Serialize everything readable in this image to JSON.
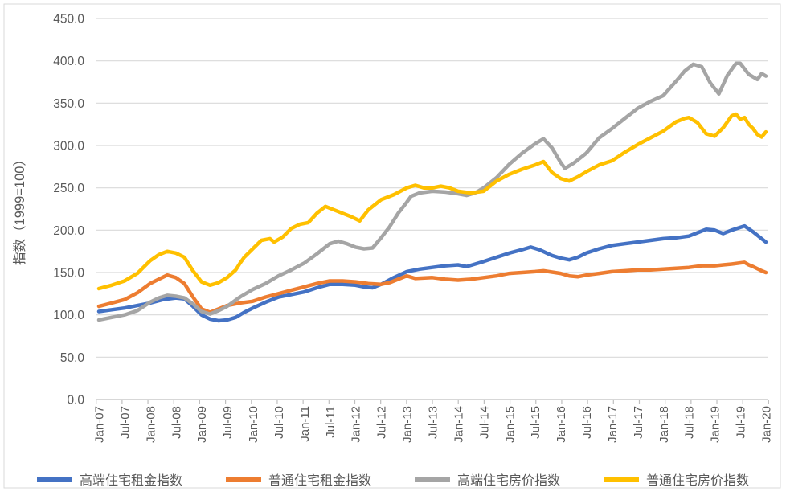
{
  "chart_data": {
    "type": "line",
    "title": "",
    "ylabel": "指数（1999=100）",
    "xlabel": "",
    "ylim": [
      0,
      450
    ],
    "y_tick_labels": [
      "0.0",
      "50.0",
      "100.0",
      "150.0",
      "200.0",
      "250.0",
      "300.0",
      "350.0",
      "400.0",
      "450.0"
    ],
    "x_tick_labels": [
      "Jan-07",
      "Jul-07",
      "Jan-08",
      "Jul-08",
      "Jan-09",
      "Jul-09",
      "Jan-10",
      "Jul-10",
      "Jan-11",
      "Jul-11",
      "Jan-12",
      "Jul-12",
      "Jan-13",
      "Jul-13",
      "Jan-14",
      "Jul-14",
      "Jan-15",
      "Jul-15",
      "Jan-16",
      "Jul-16",
      "Jan-17",
      "Jul-17",
      "Jan-18",
      "Jul-18",
      "Jan-19",
      "Jul-19",
      "Jan-20"
    ],
    "x_months_total": 157,
    "x_range_note": "monthly categories from Jan-07 (index 0) to Jan-20 (index 156), ticks every 6 months",
    "grid": "horizontal",
    "legend_position": "bottom",
    "series": [
      {
        "name": "高端住宅租金指数",
        "color": "#4472C4",
        "points": [
          [
            0,
            104
          ],
          [
            3,
            106
          ],
          [
            6,
            108
          ],
          [
            9,
            111
          ],
          [
            12,
            114
          ],
          [
            15,
            118
          ],
          [
            18,
            120
          ],
          [
            20,
            119
          ],
          [
            22,
            110
          ],
          [
            24,
            100
          ],
          [
            26,
            95
          ],
          [
            28,
            93
          ],
          [
            30,
            94
          ],
          [
            32,
            97
          ],
          [
            34,
            103
          ],
          [
            36,
            108
          ],
          [
            39,
            115
          ],
          [
            42,
            121
          ],
          [
            45,
            124
          ],
          [
            48,
            127
          ],
          [
            51,
            132
          ],
          [
            54,
            136
          ],
          [
            57,
            136
          ],
          [
            60,
            135
          ],
          [
            62,
            133
          ],
          [
            64,
            132
          ],
          [
            66,
            136
          ],
          [
            69,
            144
          ],
          [
            72,
            151
          ],
          [
            75,
            154
          ],
          [
            78,
            156
          ],
          [
            81,
            158
          ],
          [
            84,
            159
          ],
          [
            86,
            157
          ],
          [
            88,
            160
          ],
          [
            90,
            163
          ],
          [
            93,
            168
          ],
          [
            96,
            173
          ],
          [
            99,
            177
          ],
          [
            101,
            180
          ],
          [
            103,
            177
          ],
          [
            106,
            170
          ],
          [
            108,
            167
          ],
          [
            110,
            165
          ],
          [
            112,
            168
          ],
          [
            114,
            173
          ],
          [
            117,
            178
          ],
          [
            120,
            182
          ],
          [
            123,
            184
          ],
          [
            126,
            186
          ],
          [
            129,
            188
          ],
          [
            132,
            190
          ],
          [
            135,
            191
          ],
          [
            138,
            193
          ],
          [
            140,
            197
          ],
          [
            142,
            201
          ],
          [
            144,
            200
          ],
          [
            146,
            196
          ],
          [
            148,
            200
          ],
          [
            151,
            205
          ],
          [
            153,
            198
          ],
          [
            156,
            186
          ]
        ]
      },
      {
        "name": "普通住宅租金指数",
        "color": "#ED7D31",
        "points": [
          [
            0,
            110
          ],
          [
            3,
            114
          ],
          [
            6,
            118
          ],
          [
            9,
            126
          ],
          [
            12,
            137
          ],
          [
            14,
            142
          ],
          [
            16,
            147
          ],
          [
            18,
            144
          ],
          [
            20,
            137
          ],
          [
            22,
            121
          ],
          [
            24,
            107
          ],
          [
            26,
            103
          ],
          [
            28,
            107
          ],
          [
            30,
            111
          ],
          [
            33,
            114
          ],
          [
            36,
            116
          ],
          [
            39,
            121
          ],
          [
            42,
            125
          ],
          [
            45,
            129
          ],
          [
            48,
            133
          ],
          [
            51,
            137
          ],
          [
            54,
            140
          ],
          [
            57,
            140
          ],
          [
            60,
            139
          ],
          [
            63,
            137
          ],
          [
            66,
            136
          ],
          [
            68,
            138
          ],
          [
            70,
            142
          ],
          [
            72,
            146
          ],
          [
            74,
            143
          ],
          [
            78,
            144
          ],
          [
            81,
            142
          ],
          [
            84,
            141
          ],
          [
            87,
            142
          ],
          [
            90,
            144
          ],
          [
            93,
            146
          ],
          [
            96,
            149
          ],
          [
            99,
            150
          ],
          [
            102,
            151
          ],
          [
            104,
            152
          ],
          [
            108,
            149
          ],
          [
            110,
            146
          ],
          [
            112,
            145
          ],
          [
            114,
            147
          ],
          [
            117,
            149
          ],
          [
            120,
            151
          ],
          [
            123,
            152
          ],
          [
            126,
            153
          ],
          [
            129,
            153
          ],
          [
            132,
            154
          ],
          [
            135,
            155
          ],
          [
            138,
            156
          ],
          [
            141,
            158
          ],
          [
            144,
            158
          ],
          [
            146,
            159
          ],
          [
            148,
            160
          ],
          [
            151,
            162
          ],
          [
            152,
            159
          ],
          [
            153,
            157
          ],
          [
            155,
            152
          ],
          [
            156,
            150
          ]
        ]
      },
      {
        "name": "高端住宅房价指数",
        "color": "#A5A5A5",
        "points": [
          [
            0,
            94
          ],
          [
            3,
            97
          ],
          [
            6,
            100
          ],
          [
            9,
            105
          ],
          [
            12,
            115
          ],
          [
            14,
            120
          ],
          [
            16,
            123
          ],
          [
            18,
            122
          ],
          [
            20,
            120
          ],
          [
            22,
            113
          ],
          [
            24,
            104
          ],
          [
            26,
            101
          ],
          [
            28,
            105
          ],
          [
            30,
            110
          ],
          [
            33,
            121
          ],
          [
            36,
            130
          ],
          [
            39,
            137
          ],
          [
            42,
            146
          ],
          [
            45,
            153
          ],
          [
            48,
            161
          ],
          [
            51,
            172
          ],
          [
            54,
            184
          ],
          [
            56,
            187
          ],
          [
            58,
            184
          ],
          [
            60,
            180
          ],
          [
            62,
            178
          ],
          [
            64,
            179
          ],
          [
            66,
            191
          ],
          [
            68,
            204
          ],
          [
            70,
            220
          ],
          [
            72,
            233
          ],
          [
            73,
            240
          ],
          [
            75,
            244
          ],
          [
            78,
            246
          ],
          [
            81,
            245
          ],
          [
            84,
            243
          ],
          [
            86,
            241
          ],
          [
            88,
            244
          ],
          [
            90,
            250
          ],
          [
            93,
            262
          ],
          [
            96,
            278
          ],
          [
            99,
            291
          ],
          [
            102,
            302
          ],
          [
            104,
            308
          ],
          [
            106,
            297
          ],
          [
            108,
            280
          ],
          [
            109,
            273
          ],
          [
            111,
            279
          ],
          [
            114,
            291
          ],
          [
            117,
            309
          ],
          [
            120,
            320
          ],
          [
            123,
            332
          ],
          [
            126,
            344
          ],
          [
            129,
            352
          ],
          [
            132,
            359
          ],
          [
            135,
            376
          ],
          [
            137,
            388
          ],
          [
            139,
            396
          ],
          [
            141,
            393
          ],
          [
            143,
            374
          ],
          [
            145,
            361
          ],
          [
            147,
            383
          ],
          [
            149,
            397
          ],
          [
            150,
            397
          ],
          [
            152,
            384
          ],
          [
            154,
            378
          ],
          [
            155,
            385
          ],
          [
            156,
            382
          ]
        ]
      },
      {
        "name": "普通住宅房价指数",
        "color": "#FFC000",
        "points": [
          [
            0,
            131
          ],
          [
            3,
            135
          ],
          [
            6,
            140
          ],
          [
            9,
            149
          ],
          [
            12,
            164
          ],
          [
            14,
            171
          ],
          [
            16,
            175
          ],
          [
            18,
            173
          ],
          [
            20,
            168
          ],
          [
            22,
            152
          ],
          [
            24,
            139
          ],
          [
            26,
            135
          ],
          [
            28,
            138
          ],
          [
            30,
            144
          ],
          [
            32,
            153
          ],
          [
            33,
            161
          ],
          [
            34,
            168
          ],
          [
            36,
            178
          ],
          [
            38,
            188
          ],
          [
            40,
            190
          ],
          [
            41,
            186
          ],
          [
            43,
            192
          ],
          [
            45,
            202
          ],
          [
            47,
            207
          ],
          [
            49,
            209
          ],
          [
            51,
            220
          ],
          [
            53,
            228
          ],
          [
            55,
            224
          ],
          [
            57,
            220
          ],
          [
            59,
            216
          ],
          [
            61,
            211
          ],
          [
            63,
            224
          ],
          [
            66,
            236
          ],
          [
            69,
            242
          ],
          [
            72,
            250
          ],
          [
            74,
            253
          ],
          [
            76,
            250
          ],
          [
            78,
            250
          ],
          [
            80,
            252
          ],
          [
            82,
            250
          ],
          [
            84,
            246
          ],
          [
            87,
            244
          ],
          [
            90,
            246
          ],
          [
            93,
            258
          ],
          [
            96,
            266
          ],
          [
            99,
            272
          ],
          [
            102,
            277
          ],
          [
            104,
            281
          ],
          [
            106,
            268
          ],
          [
            108,
            261
          ],
          [
            110,
            258
          ],
          [
            112,
            263
          ],
          [
            114,
            269
          ],
          [
            117,
            277
          ],
          [
            120,
            282
          ],
          [
            123,
            292
          ],
          [
            126,
            301
          ],
          [
            129,
            309
          ],
          [
            132,
            317
          ],
          [
            135,
            328
          ],
          [
            137,
            332
          ],
          [
            138,
            333
          ],
          [
            140,
            327
          ],
          [
            142,
            314
          ],
          [
            144,
            311
          ],
          [
            146,
            321
          ],
          [
            148,
            335
          ],
          [
            149,
            337
          ],
          [
            150,
            331
          ],
          [
            151,
            333
          ],
          [
            152,
            325
          ],
          [
            153,
            320
          ],
          [
            154,
            313
          ],
          [
            155,
            310
          ],
          [
            156,
            316
          ]
        ]
      }
    ]
  },
  "colors": {
    "background": "#FFFFFF",
    "chart_border": "#D9D9D9",
    "gridline": "#D9D9D9",
    "axis_line": "#BFBFBF",
    "axis_text": "#595959"
  }
}
